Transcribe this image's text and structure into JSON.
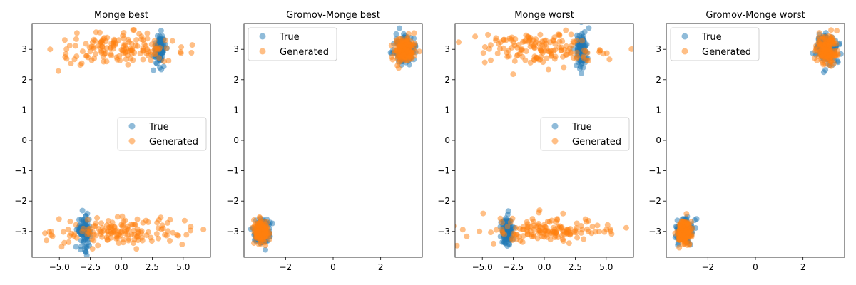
{
  "colors": {
    "true": "#1f77b4",
    "generated": "#ff7f0e"
  },
  "chart_data": [
    {
      "type": "scatter",
      "title": "Monge best",
      "xlim": [
        -7.2,
        7.2
      ],
      "ylim": [
        -3.85,
        3.85
      ],
      "xticks": [
        -5.0,
        -2.5,
        0.0,
        2.5,
        5.0
      ],
      "xtick_labels": [
        "−5.0",
        "−2.5",
        "0.0",
        "2.5",
        "5.0"
      ],
      "yticks": [
        -3,
        -2,
        -1,
        0,
        1,
        2,
        3
      ],
      "ytick_labels": [
        "−3",
        "−2",
        "−1",
        "0",
        "1",
        "2",
        "3"
      ],
      "legend": {
        "position": "center-right",
        "entries": [
          "True",
          "Generated"
        ]
      },
      "series": [
        {
          "name": "True",
          "color": "#1f77b4",
          "clusters": [
            {
              "cx": 3.1,
              "cy": 3.0,
              "sx": 0.25,
              "sy": 0.25,
              "n": 90
            },
            {
              "cx": -3.0,
              "cy": -3.0,
              "sx": 0.25,
              "sy": 0.25,
              "n": 90
            }
          ]
        },
        {
          "name": "Generated",
          "color": "#ff7f0e",
          "clusters": [
            {
              "cx": 0.0,
              "cy": 3.0,
              "sx": 2.6,
              "sy": 0.25,
              "n": 150
            },
            {
              "cx": 0.0,
              "cy": -3.0,
              "sx": 2.6,
              "sy": 0.22,
              "n": 150
            }
          ]
        }
      ]
    },
    {
      "type": "scatter",
      "title": "Gromov-Monge best",
      "xlim": [
        -3.75,
        3.75
      ],
      "ylim": [
        -3.85,
        3.85
      ],
      "xticks": [
        -2,
        0,
        2
      ],
      "xtick_labels": [
        "−2",
        "0",
        "2"
      ],
      "yticks": [
        -3,
        -2,
        -1,
        0,
        1,
        2,
        3
      ],
      "ytick_labels": [
        "−3",
        "−2",
        "−1",
        "0",
        "1",
        "2",
        "3"
      ],
      "legend": {
        "position": "upper-left",
        "entries": [
          "True",
          "Generated"
        ]
      },
      "series": [
        {
          "name": "True",
          "color": "#1f77b4",
          "clusters": [
            {
              "cx": 3.0,
              "cy": 3.0,
              "sx": 0.2,
              "sy": 0.22,
              "n": 120
            },
            {
              "cx": -3.0,
              "cy": -3.0,
              "sx": 0.18,
              "sy": 0.2,
              "n": 120
            }
          ]
        },
        {
          "name": "Generated",
          "color": "#ff7f0e",
          "clusters": [
            {
              "cx": 3.0,
              "cy": 3.0,
              "sx": 0.2,
              "sy": 0.22,
              "n": 150
            },
            {
              "cx": -3.0,
              "cy": -3.0,
              "sx": 0.16,
              "sy": 0.18,
              "n": 150
            }
          ]
        }
      ]
    },
    {
      "type": "scatter",
      "title": "Monge worst",
      "xlim": [
        -7.2,
        7.2
      ],
      "ylim": [
        -3.85,
        3.85
      ],
      "xticks": [
        -5.0,
        -2.5,
        0.0,
        2.5,
        5.0
      ],
      "xtick_labels": [
        "−5.0",
        "−2.5",
        "0.0",
        "2.5",
        "5.0"
      ],
      "yticks": [
        -3,
        -2,
        -1,
        0,
        1,
        2,
        3
      ],
      "ytick_labels": [
        "−3",
        "−2",
        "−1",
        "0",
        "1",
        "2",
        "3"
      ],
      "legend": {
        "position": "center-right",
        "entries": [
          "True",
          "Generated"
        ]
      },
      "series": [
        {
          "name": "True",
          "color": "#1f77b4",
          "clusters": [
            {
              "cx": 3.0,
              "cy": 3.0,
              "sx": 0.25,
              "sy": 0.3,
              "n": 90
            },
            {
              "cx": -3.0,
              "cy": -3.0,
              "sx": 0.25,
              "sy": 0.25,
              "n": 90
            }
          ]
        },
        {
          "name": "Generated",
          "color": "#ff7f0e",
          "clusters": [
            {
              "cx": 0.0,
              "cy": 3.0,
              "sx": 2.5,
              "sy": 0.28,
              "n": 150
            },
            {
              "cx": 0.0,
              "cy": -3.0,
              "sx": 2.5,
              "sy": 0.22,
              "n": 150
            }
          ]
        }
      ]
    },
    {
      "type": "scatter",
      "title": "Gromov-Monge worst",
      "xlim": [
        -3.75,
        3.75
      ],
      "ylim": [
        -3.85,
        3.85
      ],
      "xticks": [
        -2,
        0,
        2
      ],
      "xtick_labels": [
        "−2",
        "0",
        "2"
      ],
      "yticks": [
        -3,
        -2,
        -1,
        0,
        1,
        2,
        3
      ],
      "ytick_labels": [
        "−3",
        "−2",
        "−1",
        "0",
        "1",
        "2",
        "3"
      ],
      "legend": {
        "position": "upper-left",
        "entries": [
          "True",
          "Generated"
        ]
      },
      "series": [
        {
          "name": "True",
          "color": "#1f77b4",
          "clusters": [
            {
              "cx": 3.0,
              "cy": 3.0,
              "sx": 0.22,
              "sy": 0.28,
              "n": 120
            },
            {
              "cx": -3.0,
              "cy": -3.0,
              "sx": 0.18,
              "sy": 0.22,
              "n": 120
            }
          ]
        },
        {
          "name": "Generated",
          "color": "#ff7f0e",
          "clusters": [
            {
              "cx": 3.0,
              "cy": 3.0,
              "sx": 0.2,
              "sy": 0.22,
              "n": 150
            },
            {
              "cx": -3.0,
              "cy": -3.0,
              "sx": 0.16,
              "sy": 0.2,
              "n": 150
            }
          ]
        }
      ]
    }
  ]
}
